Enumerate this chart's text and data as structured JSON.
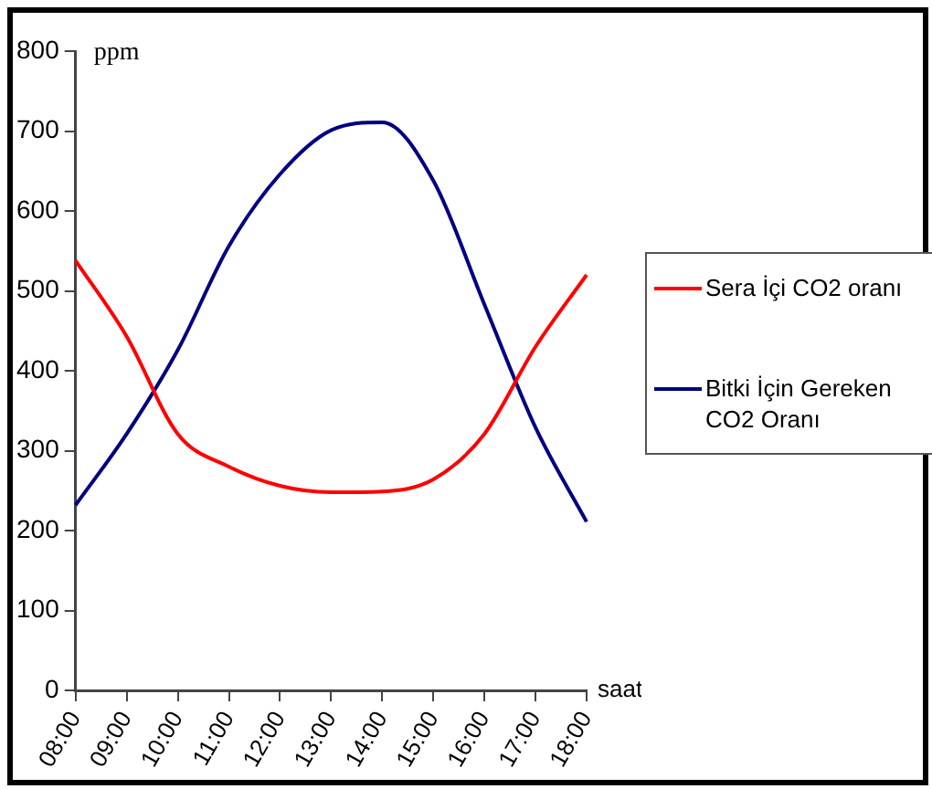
{
  "chart_data": {
    "type": "line",
    "xlabel": "saat",
    "ylabel": "ppm",
    "categories": [
      "08:00",
      "09:00",
      "10:00",
      "11:00",
      "12:00",
      "13:00",
      "14:00",
      "15:00",
      "16:00",
      "17:00",
      "18:00"
    ],
    "series": [
      {
        "name": "Sera İçi CO2 oranı",
        "color": "#ff0000",
        "values": [
          538,
          443,
          321,
          280,
          256,
          248,
          249,
          264,
          321,
          430,
          520
        ]
      },
      {
        "name": "Bitki  İçin Gereken CO2 Oranı",
        "color": "#000080",
        "values": [
          232,
          321,
          426,
          556,
          646,
          701,
          711,
          638,
          483,
          329,
          211
        ]
      }
    ],
    "ylim": [
      0,
      800
    ],
    "yticks": [
      0,
      100,
      200,
      300,
      400,
      500,
      600,
      700,
      800
    ],
    "grid": false,
    "legend": "right",
    "marker": "none",
    "line_style": "solid"
  }
}
